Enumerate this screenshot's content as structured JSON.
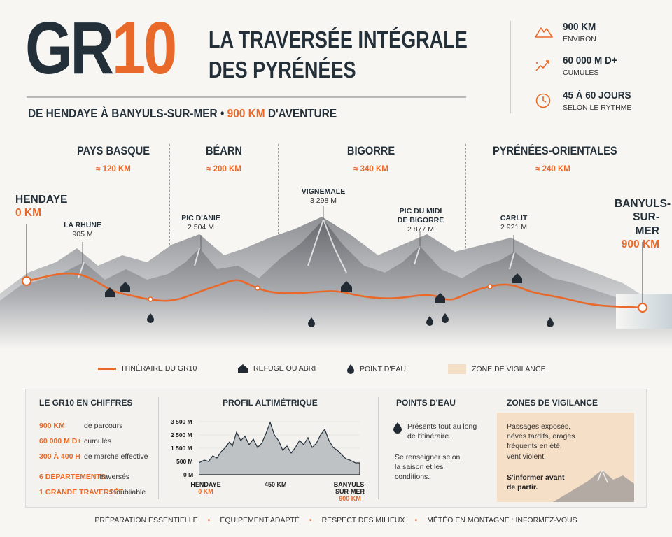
{
  "logo": {
    "gr": "GR",
    "num": "10"
  },
  "title": {
    "line1": "LA TRAVERSÉE INTÉGRALE",
    "line2": "DES PYRÉNÉES"
  },
  "subtitle": {
    "pre": "DE HENDAYE À BANYULS-SUR-MER • ",
    "highlight": "900 KM",
    "post": " D'AVENTURE"
  },
  "stats": [
    {
      "value": "900 KM",
      "sub": "ENVIRON",
      "icon": "mountain-icon"
    },
    {
      "value": "60 000 M D+",
      "sub": "CUMULÉS",
      "icon": "elevation-trend-icon"
    },
    {
      "value": "45 À 60 JOURS",
      "sub": "SELON LE RYTHME",
      "icon": "clock-icon"
    }
  ],
  "regions": [
    {
      "name": "PAYS BASQUE",
      "distance": "≈ 120 KM"
    },
    {
      "name": "BÉARN",
      "distance": "≈ 200 KM"
    },
    {
      "name": "BIGORRE",
      "distance": "≈ 340 KM"
    },
    {
      "name": "PYRÉNÉES-ORIENTALES",
      "distance": "≈ 240 KM"
    }
  ],
  "start": {
    "name": "HENDAYE",
    "km": "0 KM"
  },
  "end": {
    "name1": "BANYULS-",
    "name2": "SUR-MER",
    "km": "900 KM"
  },
  "peaks": [
    {
      "name": "LA RHUNE",
      "alt": "905 M"
    },
    {
      "name": "PIC D'ANIE",
      "alt": "2 504 M"
    },
    {
      "name": "VIGNEMALE",
      "alt": "3 298 M"
    },
    {
      "name": "PIC DU MIDI",
      "name2": "DE BIGORRE",
      "alt": "2 877 M"
    },
    {
      "name": "CARLIT",
      "alt": "2 921 M"
    }
  ],
  "legend": {
    "route": "ITINÉRAIRE DU GR10",
    "refuge": "REFUGE OU ABRI",
    "water": "POINT D'EAU",
    "vigilance": "ZONE DE VIGILANCE"
  },
  "figures": {
    "title": "LE GR10 EN CHIFFRES",
    "rows": [
      {
        "key": "900 KM",
        "text": "de parcours"
      },
      {
        "key": "60 000 M D+",
        "text": "cumulés"
      },
      {
        "key": "300 À 400 H",
        "text": "de marche effective"
      },
      {
        "key": "6 DÉPARTEMENTS",
        "text": "traversés"
      },
      {
        "key": "1 GRANDE TRAVERSÉE",
        "text": "inoubliable"
      }
    ]
  },
  "profile": {
    "title": "PROFIL ALTIMÉTRIQUE",
    "y_ticks": [
      "3 500 M",
      "2 500 M",
      "1 500 M",
      "500 M",
      "0 M"
    ],
    "x_start": "HENDAYE",
    "x_start_km": "0 KM",
    "x_mid": "450 KM",
    "x_end1": "BANYULS-",
    "x_end2": "SUR-MER",
    "x_end_km": "900 KM"
  },
  "water": {
    "title": "POINTS D'EAU",
    "text1a": "Présents tout au long",
    "text1b": "de l'itinéraire.",
    "text2a": "Se renseigner selon",
    "text2b": "la saison et les",
    "text2c": "conditions."
  },
  "vigilance": {
    "title": "ZONES DE VIGILANCE",
    "l1": "Passages exposés,",
    "l2": "névés tardifs, orages",
    "l3": "fréquents en été,",
    "l4": "vent violent.",
    "strong1": "S'informer avant",
    "strong2": "de partir."
  },
  "footer": [
    "PRÉPARATION ESSENTIELLE",
    "ÉQUIPEMENT ADAPTÉ",
    "RESPECT DES MILIEUX",
    "MÉTÉO EN MONTAGNE : INFORMEZ-VOUS"
  ],
  "colors": {
    "accent": "#e8692a",
    "dark": "#243039",
    "vigilance": "#f6dfc7"
  }
}
